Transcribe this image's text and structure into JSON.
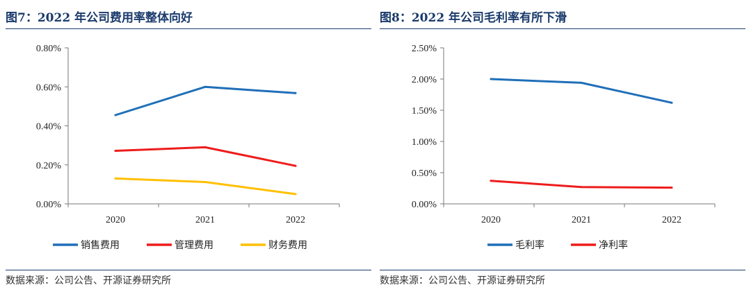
{
  "chart_data": [
    {
      "type": "line",
      "title": "图7：2022 年公司费用率整体向好",
      "categories": [
        "2020",
        "2021",
        "2022"
      ],
      "ylim": [
        0,
        0.008
      ],
      "yticks": [
        0,
        0.002,
        0.004,
        0.006,
        0.008
      ],
      "yticklabels": [
        "0.00%",
        "0.20%",
        "0.40%",
        "0.60%",
        "0.80%"
      ],
      "series": [
        {
          "name": "销售费用",
          "color": "#1f6fb8",
          "values": [
            0.00455,
            0.006,
            0.00568
          ]
        },
        {
          "name": "管理费用",
          "color": "#ee1c1c",
          "values": [
            0.00272,
            0.0029,
            0.00195
          ]
        },
        {
          "name": "财务费用",
          "color": "#ffc000",
          "values": [
            0.0013,
            0.00112,
            0.0005
          ]
        }
      ],
      "legend": "bottom",
      "source": "数据来源：公司公告、开源证券研究所"
    },
    {
      "type": "line",
      "title": "图8：2022 年公司毛利率有所下滑",
      "categories": [
        "2020",
        "2021",
        "2022"
      ],
      "ylim": [
        0,
        0.025
      ],
      "yticks": [
        0,
        0.005,
        0.01,
        0.015,
        0.02,
        0.025
      ],
      "yticklabels": [
        "0.00%",
        "0.50%",
        "1.00%",
        "1.50%",
        "2.00%",
        "2.50%"
      ],
      "series": [
        {
          "name": "毛利率",
          "color": "#1f6fb8",
          "values": [
            0.02,
            0.0194,
            0.0162
          ]
        },
        {
          "name": "净利率",
          "color": "#ee1c1c",
          "values": [
            0.0037,
            0.0027,
            0.0026
          ]
        }
      ],
      "legend": "bottom",
      "source": "数据来源：公司公告、开源证券研究所"
    }
  ]
}
